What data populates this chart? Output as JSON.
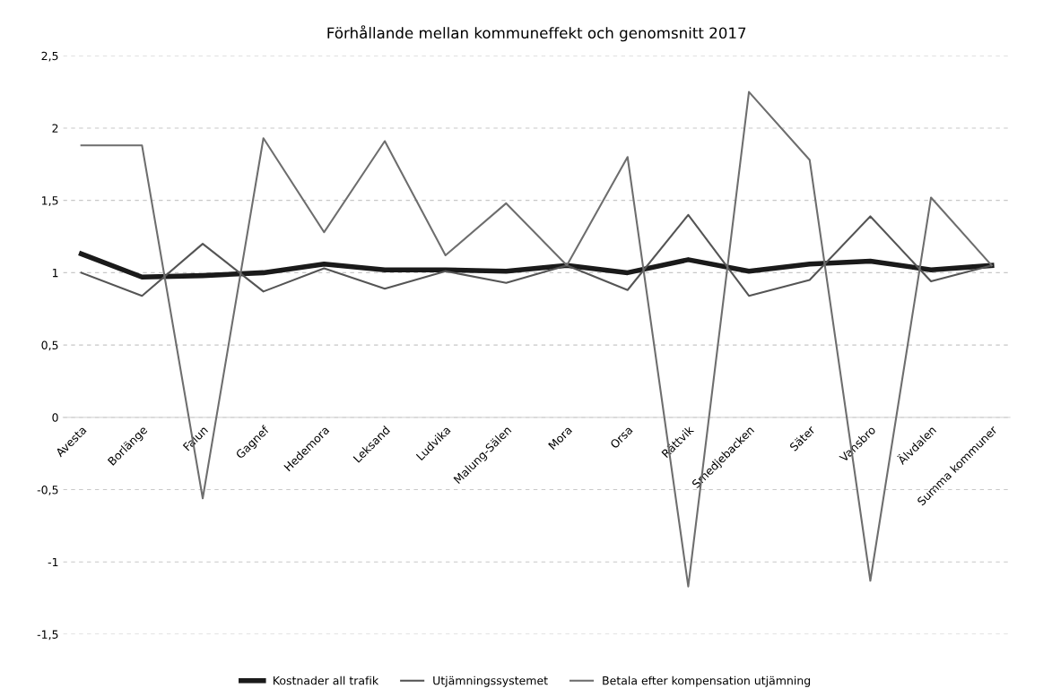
{
  "chart_data": {
    "type": "line",
    "title": "Förhållande mellan kommuneffekt och genomsnitt 2017",
    "categories": [
      "Avesta",
      "Borlänge",
      "Falun",
      "Gagnef",
      "Hedemora",
      "Leksand",
      "Ludvika",
      "Malung-Sälen",
      "Mora",
      "Orsa",
      "Rättvik",
      "Smedjebacken",
      "Säter",
      "Vansbro",
      "Älvdalen",
      "Summa kommuner"
    ],
    "series": [
      {
        "name": "Kostnader all trafik",
        "color": "#1a1a1a",
        "values": [
          1.13,
          0.97,
          0.98,
          1.0,
          1.06,
          1.02,
          1.02,
          1.01,
          1.05,
          1.0,
          1.09,
          1.01,
          1.06,
          1.08,
          1.02,
          1.05
        ]
      },
      {
        "name": "Utjämningssystemet",
        "color": "#555555",
        "values": [
          1.0,
          0.84,
          1.2,
          0.87,
          1.03,
          0.89,
          1.01,
          0.93,
          1.05,
          0.88,
          1.4,
          0.84,
          0.95,
          1.39,
          0.94,
          1.05
        ]
      },
      {
        "name": "Betala efter kompensation utjämning",
        "color": "#6e6e6e",
        "values": [
          1.88,
          1.88,
          -0.56,
          1.93,
          1.28,
          1.91,
          1.12,
          1.48,
          1.05,
          1.8,
          -1.17,
          2.25,
          1.78,
          -1.13,
          1.52,
          1.05
        ]
      }
    ],
    "ylim": [
      -1.5,
      2.5
    ],
    "yticks": [
      {
        "value": -1.5,
        "label": "-1,5"
      },
      {
        "value": -1,
        "label": "-1"
      },
      {
        "value": -0.5,
        "label": "-0,5"
      },
      0,
      {
        "value": 0.5,
        "label": "0,5"
      },
      1,
      {
        "value": 1.5,
        "label": "1,5"
      },
      2,
      {
        "value": 2.5,
        "label": "2,5"
      }
    ],
    "grid": "y",
    "legend": "bottom",
    "marker": "none",
    "line_style": "solid"
  }
}
